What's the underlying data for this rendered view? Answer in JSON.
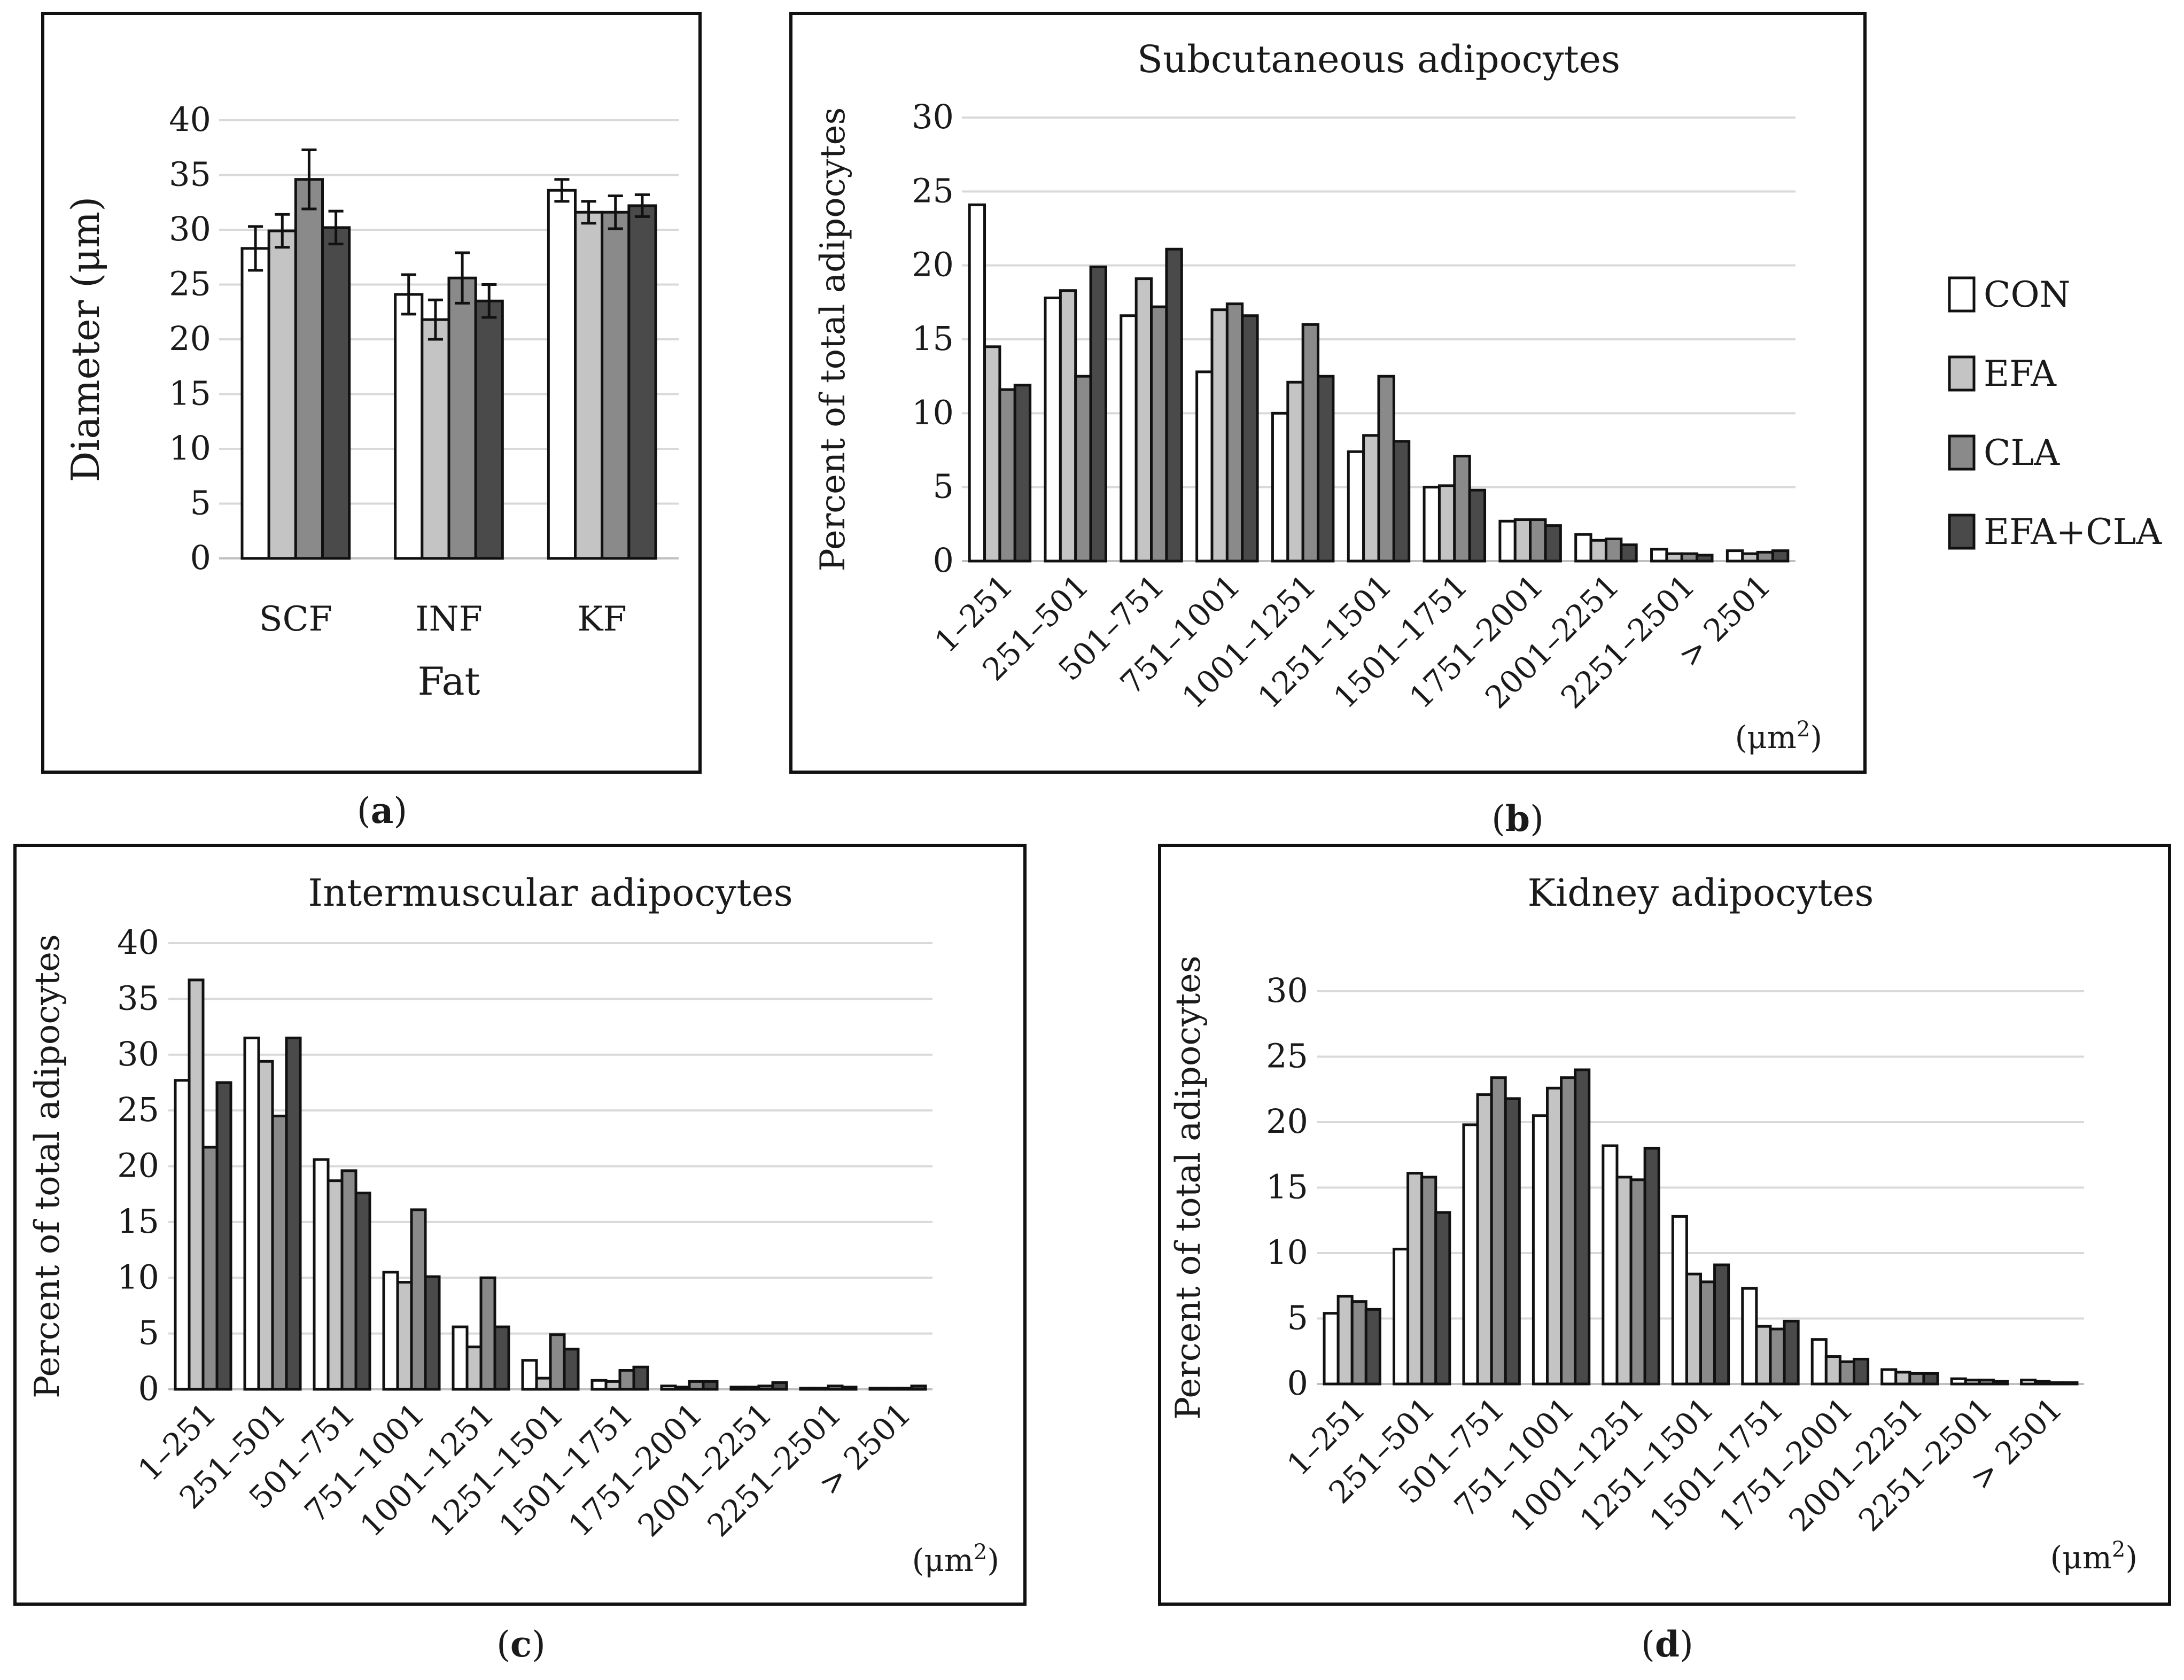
{
  "colors": {
    "CON": "#ffffff",
    "EFA": "#c4c4c4",
    "CLA": "#8a8a8a",
    "EFA+CLA": "#4a4a4a"
  },
  "legend": [
    "CON",
    "EFA",
    "CLA",
    "EFA+CLA"
  ],
  "chart_data": [
    {
      "panel": "a",
      "type": "bar",
      "title": "",
      "xlabel": "Fat",
      "ylabel": "Diameter (μm)",
      "ylim": [
        0,
        40
      ],
      "yticks": [
        "0",
        "5",
        "10",
        "15",
        "20",
        "25",
        "30",
        "35",
        "40"
      ],
      "categories": [
        "SCF",
        "INF",
        "KF"
      ],
      "series": [
        {
          "name": "CON",
          "values": [
            28.3,
            24.1,
            33.6
          ],
          "errors": [
            2.0,
            1.8,
            1.0
          ]
        },
        {
          "name": "EFA",
          "values": [
            29.9,
            21.8,
            31.6
          ],
          "errors": [
            1.5,
            1.8,
            1.0
          ]
        },
        {
          "name": "CLA",
          "values": [
            34.6,
            25.6,
            31.6
          ],
          "errors": [
            2.7,
            2.3,
            1.5
          ]
        },
        {
          "name": "EFA+CLA",
          "values": [
            30.2,
            23.5,
            32.2
          ],
          "errors": [
            1.5,
            1.5,
            1.0
          ]
        }
      ],
      "caption": "a",
      "grid": true
    },
    {
      "panel": "b",
      "type": "bar",
      "title": "Subcutaneous adipocytes",
      "xlabel": "",
      "unit": "(μm2)",
      "ylabel": "Percent of total adipocytes",
      "ylim": [
        0,
        30
      ],
      "yticks": [
        "0",
        "5",
        "10",
        "15",
        "20",
        "25",
        "30"
      ],
      "categories": [
        "1–251",
        "251–501",
        "501–751",
        "751–1001",
        "1001–1251",
        "1251–1501",
        "1501–1751",
        "1751–2001",
        "2001–2251",
        "2251–2501",
        "> 2501"
      ],
      "series": [
        {
          "name": "CON",
          "values": [
            24.1,
            17.8,
            16.6,
            12.8,
            10.0,
            7.4,
            5.0,
            2.7,
            1.8,
            0.8,
            0.7
          ]
        },
        {
          "name": "EFA",
          "values": [
            14.5,
            18.3,
            19.1,
            17.0,
            12.1,
            8.5,
            5.1,
            2.8,
            1.4,
            0.5,
            0.5
          ]
        },
        {
          "name": "CLA",
          "values": [
            11.6,
            12.5,
            17.2,
            17.4,
            16.0,
            12.5,
            7.1,
            2.8,
            1.5,
            0.5,
            0.6
          ]
        },
        {
          "name": "EFA+CLA",
          "values": [
            11.9,
            19.9,
            21.1,
            16.6,
            12.5,
            8.1,
            4.8,
            2.4,
            1.1,
            0.4,
            0.7
          ]
        }
      ],
      "caption": "b",
      "grid": true
    },
    {
      "panel": "c",
      "type": "bar",
      "title": "Intermuscular adipocytes",
      "xlabel": "",
      "unit": "(μm2)",
      "ylabel": "Percent of total adipocytes",
      "ylim": [
        0,
        40
      ],
      "yticks": [
        "0",
        "5",
        "10",
        "15",
        "20",
        "25",
        "30",
        "35",
        "40"
      ],
      "categories": [
        "1–251",
        "251–501",
        "501–751",
        "751–1001",
        "1001–1251",
        "1251–1501",
        "1501–1751",
        "1751–2001",
        "2001–2251",
        "2251–2501",
        "> 2501"
      ],
      "series": [
        {
          "name": "CON",
          "values": [
            27.7,
            31.5,
            20.6,
            10.5,
            5.6,
            2.6,
            0.8,
            0.3,
            0.2,
            0.1,
            0.1
          ]
        },
        {
          "name": "EFA",
          "values": [
            36.7,
            29.4,
            18.7,
            9.6,
            3.8,
            1.0,
            0.7,
            0.2,
            0.2,
            0.1,
            0.1
          ]
        },
        {
          "name": "CLA",
          "values": [
            21.7,
            24.5,
            19.6,
            16.1,
            10.0,
            4.9,
            1.7,
            0.7,
            0.3,
            0.3,
            0.1
          ]
        },
        {
          "name": "EFA+CLA",
          "values": [
            27.5,
            31.5,
            17.6,
            10.1,
            5.6,
            3.6,
            2.0,
            0.7,
            0.6,
            0.2,
            0.3
          ]
        }
      ],
      "caption": "c",
      "grid": true
    },
    {
      "panel": "d",
      "type": "bar",
      "title": "Kidney adipocytes",
      "xlabel": "",
      "unit": "(μm2)",
      "ylabel": "Percent of total adipocytes",
      "ylim": [
        0,
        30
      ],
      "yticks": [
        "0",
        "5",
        "10",
        "15",
        "20",
        "25",
        "30"
      ],
      "categories": [
        "1–251",
        "251–501",
        "501–751",
        "751–1001",
        "1001–1251",
        "1251–1501",
        "1501–1751",
        "1751–2001",
        "2001–2251",
        "2251–2501",
        "> 2501"
      ],
      "series": [
        {
          "name": "CON",
          "values": [
            5.4,
            10.3,
            19.8,
            20.5,
            18.2,
            12.8,
            7.3,
            3.4,
            1.1,
            0.4,
            0.3
          ]
        },
        {
          "name": "EFA",
          "values": [
            6.7,
            16.1,
            22.1,
            22.6,
            15.8,
            8.4,
            4.4,
            2.1,
            0.9,
            0.3,
            0.2
          ]
        },
        {
          "name": "CLA",
          "values": [
            6.3,
            15.8,
            23.4,
            23.4,
            15.6,
            7.8,
            4.2,
            1.7,
            0.8,
            0.3,
            0.1
          ]
        },
        {
          "name": "EFA+CLA",
          "values": [
            5.7,
            13.1,
            21.8,
            24.0,
            18.0,
            9.1,
            4.8,
            1.9,
            0.8,
            0.2,
            0.1
          ]
        }
      ],
      "caption": "d",
      "grid": true
    }
  ]
}
